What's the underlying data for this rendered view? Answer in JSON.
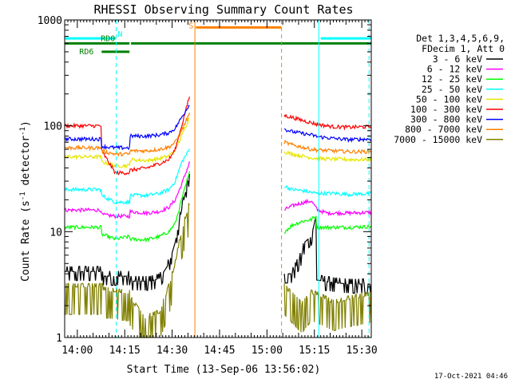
{
  "chart_data": {
    "type": "line",
    "title": "RHESSI Observing Summary Count Rates",
    "xlabel": "Start Time (13-Sep-06 13:56:02)",
    "ylabel": "Count Rate (s",
    "ylabel_sup": "-1",
    "ylabel_mid": " detector",
    "ylabel_sup2": "-1",
    "ylabel_end": ")",
    "y_scale": "log",
    "ylim": [
      1,
      1000
    ],
    "y_ticks": [
      {
        "value": 1,
        "label": "1"
      },
      {
        "value": 10,
        "label": "10"
      },
      {
        "value": 100,
        "label": "100"
      },
      {
        "value": 1000,
        "label": "1000"
      }
    ],
    "xlim_minutes": [
      0,
      97
    ],
    "x_ticks": [
      {
        "minute": 4,
        "label": "14:00"
      },
      {
        "minute": 19,
        "label": "14:15"
      },
      {
        "minute": 34,
        "label": "14:30"
      },
      {
        "minute": 49,
        "label": "14:45"
      },
      {
        "minute": 64,
        "label": "15:00"
      },
      {
        "minute": 79,
        "label": "15:15"
      },
      {
        "minute": 94,
        "label": "15:30"
      }
    ],
    "legend_header": [
      "Det 1,3,4,5,6,9,",
      "FDecim 1, Att 0"
    ],
    "legend_position": "right",
    "timestamp": "17-Oct-2021 04:46",
    "flags": [
      {
        "label": "N",
        "color": "#00ffff",
        "y": 670,
        "segments": [
          [
            0,
            16.3
          ],
          [
            81,
            97
          ]
        ]
      },
      {
        "label": "S",
        "color": "#ff8000",
        "y": 850,
        "segments": [
          [
            41.5,
            68.5
          ]
        ]
      },
      {
        "label": "RD0",
        "color": "#008000",
        "y": 600,
        "segments": [
          [
            0,
            20.5
          ],
          [
            21,
            97
          ]
        ]
      },
      {
        "label": "RD6",
        "color": "#008000",
        "y": 500,
        "segments": [
          [
            11.7,
            20.5
          ]
        ]
      }
    ],
    "vlines": [
      {
        "minute": 16.3,
        "color": "#00ffff",
        "dash": true
      },
      {
        "minute": 41.2,
        "color": "#ff8000",
        "dash": false
      },
      {
        "minute": 68.6,
        "color": "#ff8000",
        "dash": true
      },
      {
        "minute": 80.4,
        "color": "#00ffff",
        "dash": false
      },
      {
        "minute": 96.3,
        "color": "#00ffff",
        "dash": true
      }
    ],
    "gap_minutes": [
      39.5,
      69.5
    ],
    "series": [
      {
        "name": "3 - 6 keV",
        "color": "#000000",
        "segments": [
          {
            "x": [
              0,
              12,
              12.01,
              20.5,
              20.51,
              27,
              30,
              33,
              35,
              37,
              39.5
            ],
            "y": [
              4.2,
              4.2,
              3.8,
              3.8,
              3.4,
              3.4,
              3.6,
              5,
              8,
              16,
              35
            ]
          },
          {
            "x": [
              69.5,
              72,
              75,
              76,
              78,
              79,
              79.5,
              79.6,
              85,
              90,
              97
            ],
            "y": [
              4,
              4,
              6,
              8,
              9,
              12,
              14,
              3.5,
              3.3,
              3.2,
              3.2
            ]
          }
        ]
      },
      {
        "name": "6 - 12 keV",
        "color": "#ff00ff",
        "segments": [
          {
            "x": [
              0,
              11.5,
              11.51,
              16,
              20.5,
              20.51,
              26,
              30,
              33,
              35,
              37,
              39.5
            ],
            "y": [
              16,
              16,
              14.5,
              14,
              14,
              15.5,
              15,
              15.5,
              17,
              20,
              28,
              45
            ]
          },
          {
            "x": [
              69.5,
              71,
              73,
              76,
              78,
              80,
              83,
              90,
              97
            ],
            "y": [
              16,
              17,
              18,
              19,
              19.5,
              16,
              15,
              15,
              15.2
            ]
          }
        ]
      },
      {
        "name": "12 - 25 keV",
        "color": "#00ff00",
        "segments": [
          {
            "x": [
              0,
              11.5,
              11.51,
              16,
              20.5,
              20.51,
              26,
              30,
              33,
              35,
              37,
              39.5
            ],
            "y": [
              11,
              11,
              9.5,
              8.5,
              9,
              8.5,
              8.4,
              9,
              10,
              12,
              20,
              36
            ]
          },
          {
            "x": [
              69.5,
              72,
              75,
              78,
              79.5,
              79.6,
              85,
              90,
              97
            ],
            "y": [
              10,
              11.5,
              12.5,
              13,
              14,
              11,
              11,
              11,
              11.2
            ]
          }
        ]
      },
      {
        "name": "25 - 50 keV",
        "color": "#00ffff",
        "segments": [
          {
            "x": [
              0,
              11.5,
              11.51,
              16,
              20.5,
              20.51,
              26,
              30,
              33,
              35,
              37,
              39.5
            ],
            "y": [
              25,
              25,
              22,
              19,
              19,
              22,
              22,
              23,
              25,
              30,
              45,
              60
            ]
          },
          {
            "x": [
              69.5,
              72,
              75,
              78,
              80,
              85,
              90,
              97
            ],
            "y": [
              27,
              25,
              24.5,
              23.5,
              23,
              23,
              22.5,
              23
            ]
          }
        ]
      },
      {
        "name": "50 - 100 keV",
        "color": "#e6e600",
        "segments": [
          {
            "x": [
              0,
              11.5,
              11.51,
              16,
              20.5,
              20.51,
              26,
              30,
              33,
              35,
              37,
              39.5
            ],
            "y": [
              51,
              51,
              46,
              42,
              42,
              48,
              47,
              49,
              52,
              60,
              80,
              120
            ]
          },
          {
            "x": [
              69.5,
              72,
              75,
              78,
              80,
              85,
              90,
              97
            ],
            "y": [
              57,
              54,
              52,
              50,
              49,
              48.5,
              48,
              48
            ]
          }
        ]
      },
      {
        "name": "100 - 300 keV",
        "color": "#ff0000",
        "segments": [
          {
            "x": [
              0,
              11.5,
              11.51,
              16,
              20.5,
              20.51,
              26,
              30,
              33,
              35,
              37,
              39.5
            ],
            "y": [
              100,
              100,
              59,
              36,
              36,
              38,
              40,
              44,
              48,
              60,
              100,
              190
            ]
          },
          {
            "x": [
              69.5,
              72,
              75,
              78,
              80,
              85,
              90,
              97
            ],
            "y": [
              125,
              120,
              113,
              107,
              103,
              98,
              97,
              98
            ]
          }
        ]
      },
      {
        "name": "300 - 800 keV",
        "color": "#0000ff",
        "segments": [
          {
            "x": [
              0,
              11.5,
              11.51,
              16,
              20.5,
              20.51,
              26,
              30,
              33,
              35,
              37,
              39.5
            ],
            "y": [
              75,
              75,
              64,
              62,
              62,
              80,
              80,
              82,
              86,
              95,
              120,
              160
            ]
          },
          {
            "x": [
              69.5,
              72,
              75,
              78,
              80,
              85,
              90,
              97
            ],
            "y": [
              93,
              88,
              85,
              82,
              79,
              76,
              74,
              75
            ]
          }
        ]
      },
      {
        "name": "800 - 7000 keV",
        "color": "#ff8000",
        "segments": [
          {
            "x": [
              0,
              11.5,
              11.51,
              16,
              20.5,
              20.51,
              26,
              30,
              33,
              35,
              37,
              39.5
            ],
            "y": [
              62,
              62,
              58,
              54,
              54,
              58,
              58,
              60,
              63,
              70,
              90,
              130
            ]
          },
          {
            "x": [
              69.5,
              72,
              75,
              78,
              80,
              85,
              90,
              97
            ],
            "y": [
              70,
              66,
              63,
              60,
              59,
              58,
              57,
              57
            ]
          }
        ]
      },
      {
        "name": "7000 - 15000 keV",
        "color": "#808000",
        "segments": [
          {
            "x": [
              0,
              12,
              12.01,
              20.5,
              20.51,
              25,
              30,
              33,
              35,
              37,
              39.5
            ],
            "y": [
              3,
              3,
              2.8,
              2.6,
              2.4,
              1.5,
              1.7,
              3,
              5,
              10,
              18
            ]
          },
          {
            "x": [
              69.5,
              72,
              75,
              78,
              80,
              85,
              90,
              97
            ],
            "y": [
              3,
              2.5,
              2,
              2.6,
              2.5,
              2.1,
              2.3,
              2.5
            ]
          }
        ]
      }
    ]
  }
}
